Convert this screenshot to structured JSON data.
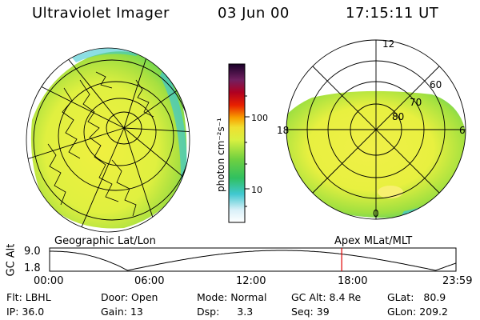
{
  "header": {
    "instrument": "Ultraviolet Imager",
    "date": "03 Jun 00",
    "time": "17:15:11 UT"
  },
  "geo_panel": {
    "label": "Geographic Lat/Lon"
  },
  "apex_panel": {
    "label": "Apex MLat/MLT",
    "mlt_labels": [
      "12",
      "18",
      "6",
      "0"
    ],
    "lat_labels": [
      "60",
      "70",
      "80"
    ]
  },
  "colorbar": {
    "unit": "photon cm⁻²s⁻¹",
    "ticks": [
      "100",
      "10"
    ],
    "scale": "log",
    "colors": [
      "#ffffff",
      "#b0e8f0",
      "#30c8c8",
      "#40d040",
      "#a0e040",
      "#e8f040",
      "#f8a800",
      "#e02000",
      "#a00020",
      "#602050",
      "#200030"
    ]
  },
  "altitude_plot": {
    "ylabel": "GC Alt",
    "yticks": [
      "9.0",
      "1.8"
    ],
    "xticks": [
      "00:00",
      "06:00",
      "12:00",
      "18:00",
      "23:59"
    ],
    "current_time_hours": 17.25,
    "current_color": "#e00000"
  },
  "status": {
    "filter": {
      "label": "Flt:",
      "value": "LBHL"
    },
    "ip": {
      "label": "IP:",
      "value": "36.0"
    },
    "door": {
      "label": "Door:",
      "value": "Open"
    },
    "gain": {
      "label": "Gain:",
      "value": "13"
    },
    "mode": {
      "label": "Mode:",
      "value": "Normal"
    },
    "dsp": {
      "label": "Dsp:",
      "value": "3.3"
    },
    "gc_alt": {
      "label": "GC Alt:",
      "value": "8.4 Re"
    },
    "seq": {
      "label": "Seq:",
      "value": "39"
    },
    "glat": {
      "label": "GLat:",
      "value": "80.9"
    },
    "glon": {
      "label": "GLon:",
      "value": "209.2"
    }
  }
}
